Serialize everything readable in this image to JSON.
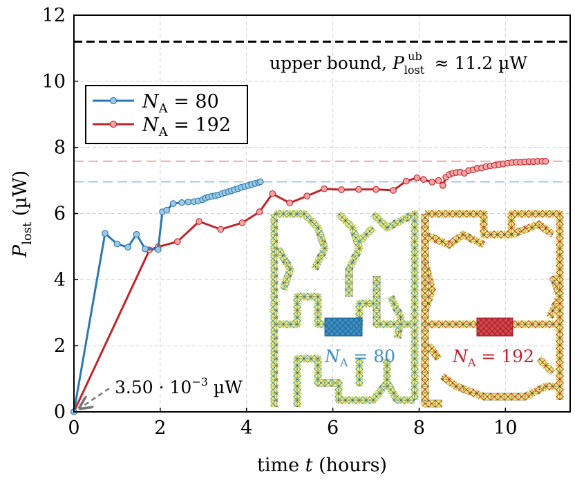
{
  "chart_data": {
    "type": "line",
    "xlabel": "time t (hours)",
    "ylabel": "P_lost (µW)",
    "xlim": [
      0,
      11.5
    ],
    "ylim": [
      0,
      12
    ],
    "xticks": [
      0,
      2,
      4,
      6,
      8,
      10
    ],
    "yticks": [
      0,
      2,
      4,
      6,
      8,
      10,
      12
    ],
    "grid": true,
    "legend_position": "upper-left",
    "series": [
      {
        "name": "N_A = 80",
        "color": "#2878b5",
        "marker_fill": "#9ecae1",
        "x": [
          0,
          0.72,
          1.0,
          1.25,
          1.45,
          1.65,
          1.95,
          2.05,
          2.15,
          2.3,
          2.5,
          2.65,
          2.78,
          2.88,
          2.98,
          3.05,
          3.12,
          3.2,
          3.28,
          3.35,
          3.43,
          3.5,
          3.58,
          3.65,
          3.72,
          3.8,
          3.88,
          3.96,
          4.04,
          4.12,
          4.2,
          4.28,
          4.32
        ],
        "y": [
          0.0035,
          5.4,
          5.08,
          4.98,
          5.37,
          4.93,
          4.91,
          6.05,
          6.1,
          6.3,
          6.33,
          6.35,
          6.36,
          6.38,
          6.42,
          6.47,
          6.5,
          6.52,
          6.54,
          6.56,
          6.6,
          6.63,
          6.66,
          6.69,
          6.72,
          6.75,
          6.79,
          6.82,
          6.85,
          6.88,
          6.91,
          6.94,
          6.96
        ]
      },
      {
        "name": "N_A = 192",
        "color": "#c0232a",
        "marker_fill": "#f4a6a6",
        "x": [
          0,
          1.75,
          1.95,
          2.4,
          2.9,
          3.4,
          3.9,
          4.3,
          4.6,
          5.0,
          5.4,
          5.8,
          6.2,
          6.6,
          7.0,
          7.4,
          7.7,
          7.95,
          8.1,
          8.3,
          8.45,
          8.55,
          8.62,
          8.7,
          8.78,
          8.86,
          8.95,
          9.05,
          9.15,
          9.25,
          9.35,
          9.45,
          9.55,
          9.65,
          9.75,
          9.85,
          9.95,
          10.05,
          10.15,
          10.25,
          10.35,
          10.45,
          10.55,
          10.65,
          10.75,
          10.85,
          10.93
        ],
        "y": [
          0.0035,
          4.9,
          4.99,
          5.15,
          5.76,
          5.52,
          5.72,
          6.05,
          6.6,
          6.32,
          6.53,
          6.75,
          6.72,
          6.73,
          6.73,
          6.7,
          6.98,
          7.08,
          7.03,
          6.95,
          7.0,
          6.85,
          7.1,
          7.18,
          7.22,
          7.24,
          7.25,
          7.22,
          7.3,
          7.32,
          7.37,
          7.38,
          7.42,
          7.44,
          7.46,
          7.48,
          7.5,
          7.52,
          7.54,
          7.55,
          7.55,
          7.56,
          7.57,
          7.57,
          7.58,
          7.58,
          7.58
        ]
      }
    ],
    "reference_lines": [
      {
        "y": 11.2,
        "color": "#000000",
        "style": "dashed",
        "label": "upper bound, P_lost^ub ≈ 11.2 µW"
      },
      {
        "y": 7.58,
        "color": "#f4a6a6",
        "style": "dashed"
      },
      {
        "y": 6.96,
        "color": "#9ecae1",
        "style": "dashed"
      }
    ],
    "annotations": [
      {
        "text": "3.50 · 10^-3 µW",
        "points_to": [
          0,
          0.0035
        ]
      }
    ],
    "insets": [
      {
        "label": "N_A = 80",
        "color": "#2878b5"
      },
      {
        "label": "N_A = 192",
        "color": "#c0232a"
      }
    ]
  }
}
